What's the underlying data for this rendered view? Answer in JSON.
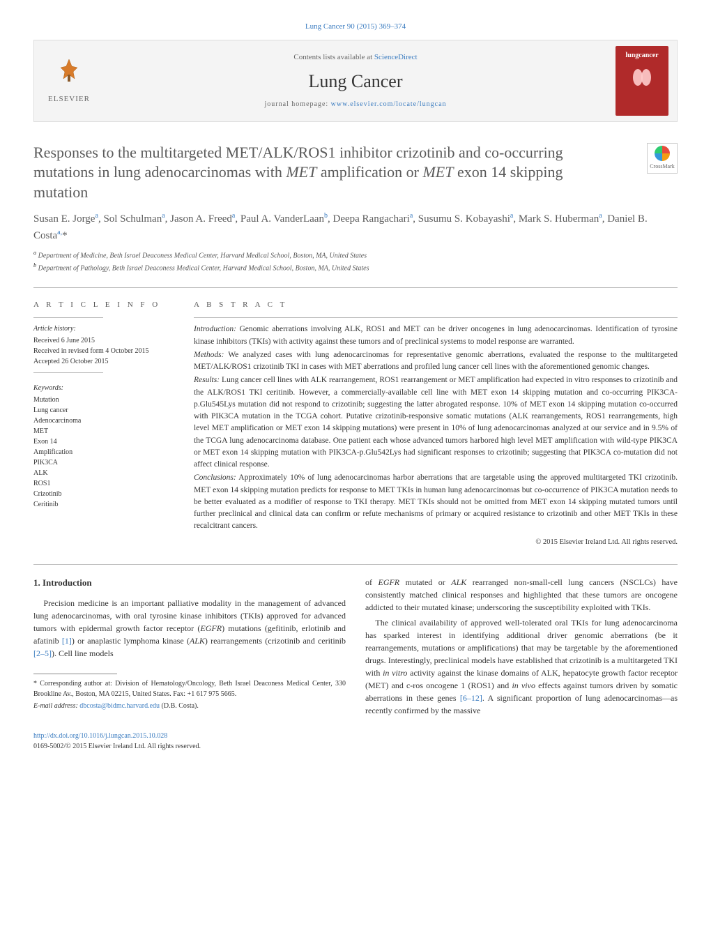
{
  "top_link": "Lung Cancer 90 (2015) 369–374",
  "header": {
    "brand": "ELSEVIER",
    "contents_prefix": "Contents lists available at ",
    "contents_link": "ScienceDirect",
    "journal_title": "Lung Cancer",
    "homepage_prefix": "journal homepage: ",
    "homepage_link": "www.elsevier.com/locate/lungcan",
    "cover_text": "lungcancer"
  },
  "crossmark_label": "CrossMark",
  "title_html": "Responses to the multitargeted MET/ALK/ROS1 inhibitor crizotinib and co-occurring mutations in lung adenocarcinomas with <em>MET</em> amplification or <em>MET</em> exon 14 skipping mutation",
  "authors_html": "Susan E. Jorge<sup>a</sup>, Sol Schulman<sup>a</sup>, Jason A. Freed<sup>a</sup>, Paul A. VanderLaan<sup>b</sup>, Deepa Rangachari<sup>a</sup>, Susumu S. Kobayashi<sup>a</sup>, Mark S. Huberman<sup>a</sup>, Daniel B. Costa<sup>a,</sup>*",
  "affiliations": {
    "a": "Department of Medicine, Beth Israel Deaconess Medical Center, Harvard Medical School, Boston, MA, United States",
    "b": "Department of Pathology, Beth Israel Deaconess Medical Center, Harvard Medical School, Boston, MA, United States"
  },
  "article_info": {
    "heading": "A R T I C L E   I N F O",
    "history_label": "Article history:",
    "received": "Received 6 June 2015",
    "revised": "Received in revised form 4 October 2015",
    "accepted": "Accepted 26 October 2015",
    "keywords_label": "Keywords:",
    "keywords": [
      "Mutation",
      "Lung cancer",
      "Adenocarcinoma",
      "MET",
      "Exon 14",
      "Amplification",
      "PIK3CA",
      "ALK",
      "ROS1",
      "Crizotinib",
      "Ceritinib"
    ]
  },
  "abstract": {
    "heading": "A B S T R A C T",
    "intro_label": "Introduction:",
    "intro": "Genomic aberrations involving ALK, ROS1 and MET can be driver oncogenes in lung adenocarcinomas. Identification of tyrosine kinase inhibitors (TKIs) with activity against these tumors and of preclinical systems to model response are warranted.",
    "methods_label": "Methods:",
    "methods": "We analyzed cases with lung adenocarcinomas for representative genomic aberrations, evaluated the response to the multitargeted MET/ALK/ROS1 crizotinib TKI in cases with MET aberrations and profiled lung cancer cell lines with the aforementioned genomic changes.",
    "results_label": "Results:",
    "results": "Lung cancer cell lines with ALK rearrangement, ROS1 rearrangement or MET amplification had expected in vitro responses to crizotinib and the ALK/ROS1 TKI ceritinib. However, a commercially-available cell line with MET exon 14 skipping mutation and co-occurring PIK3CA-p.Glu545Lys mutation did not respond to crizotinib; suggesting the latter abrogated response. 10% of MET exon 14 skipping mutation co-occurred with PIK3CA mutation in the TCGA cohort. Putative crizotinib-responsive somatic mutations (ALK rearrangements, ROS1 rearrangements, high level MET amplification or MET exon 14 skipping mutations) were present in 10% of lung adenocarcinomas analyzed at our service and in 9.5% of the TCGA lung adenocarcinoma database. One patient each whose advanced tumors harbored high level MET amplification with wild-type PIK3CA or MET exon 14 skipping mutation with PIK3CA-p.Glu542Lys had significant responses to crizotinib; suggesting that PIK3CA co-mutation did not affect clinical response.",
    "conclusions_label": "Conclusions:",
    "conclusions": "Approximately 10% of lung adenocarcinomas harbor aberrations that are targetable using the approved multitargeted TKI crizotinib. MET exon 14 skipping mutation predicts for response to MET TKIs in human lung adenocarcinomas but co-occurrence of PIK3CA mutation needs to be better evaluated as a modifier of response to TKI therapy. MET TKIs should not be omitted from MET exon 14 skipping mutated tumors until further preclinical and clinical data can confirm or refute mechanisms of primary or acquired resistance to crizotinib and other MET TKIs in these recalcitrant cancers.",
    "copyright": "© 2015 Elsevier Ireland Ltd. All rights reserved."
  },
  "body": {
    "section_number": "1.",
    "section_title": "Introduction",
    "para1_html": "Precision medicine is an important palliative modality in the management of advanced lung adenocarcinomas, with oral tyrosine kinase inhibitors (TKIs) approved for advanced tumors with epidermal growth factor receptor (<em>EGFR</em>) mutations (gefitinib, erlotinib and afatinib <a class='ref' href='#'>[1]</a>) or anaplastic lymphoma kinase (<em>ALK</em>) rearrangements (crizotinib and ceritinib <a class='ref' href='#'>[2–5]</a>). Cell line models",
    "para2_html": "of <em>EGFR</em> mutated or <em>ALK</em> rearranged non-small-cell lung cancers (NSCLCs) have consistently matched clinical responses and highlighted that these tumors are oncogene addicted to their mutated kinase; underscoring the susceptibility exploited with TKIs.",
    "para3_html": "The clinical availability of approved well-tolerated oral TKIs for lung adenocarcinoma has sparked interest in identifying additional driver genomic aberrations (be it rearrangements, mutations or amplifications) that may be targetable by the aforementioned drugs. Interestingly, preclinical models have established that crizotinib is a multitargeted TKI with <em>in vitro</em> activity against the kinase domains of ALK, hepatocyte growth factor receptor (MET) and c-ros oncogene 1 (ROS1) and <em>in vivo</em> effects against tumors driven by somatic aberrations in these genes <a class='ref' href='#'>[6–12]</a>. A significant proportion of lung adenocarcinomas—as recently confirmed by the massive"
  },
  "footnotes": {
    "corresponding": "Corresponding author at: Division of Hematology/Oncology, Beth Israel Deaconess Medical Center, 330 Brookline Av., Boston, MA 02215, United States. Fax: +1 617 975 5665.",
    "email_label": "E-mail address:",
    "email": "dbcosta@bidmc.harvard.edu",
    "email_suffix": "(D.B. Costa)."
  },
  "bottom": {
    "doi": "http://dx.doi.org/10.1016/j.lungcan.2015.10.028",
    "issn_copyright": "0169-5002/© 2015 Elsevier Ireland Ltd. All rights reserved."
  },
  "colors": {
    "link": "#3b7cc0",
    "journal_cover": "#b02a2a",
    "elsevier_tree": "#d87b2a",
    "text": "#333333",
    "heading_gray": "#5a5a5a",
    "rule": "#bbbbbb",
    "bg": "#ffffff",
    "box_bg": "#f4f4f4"
  }
}
